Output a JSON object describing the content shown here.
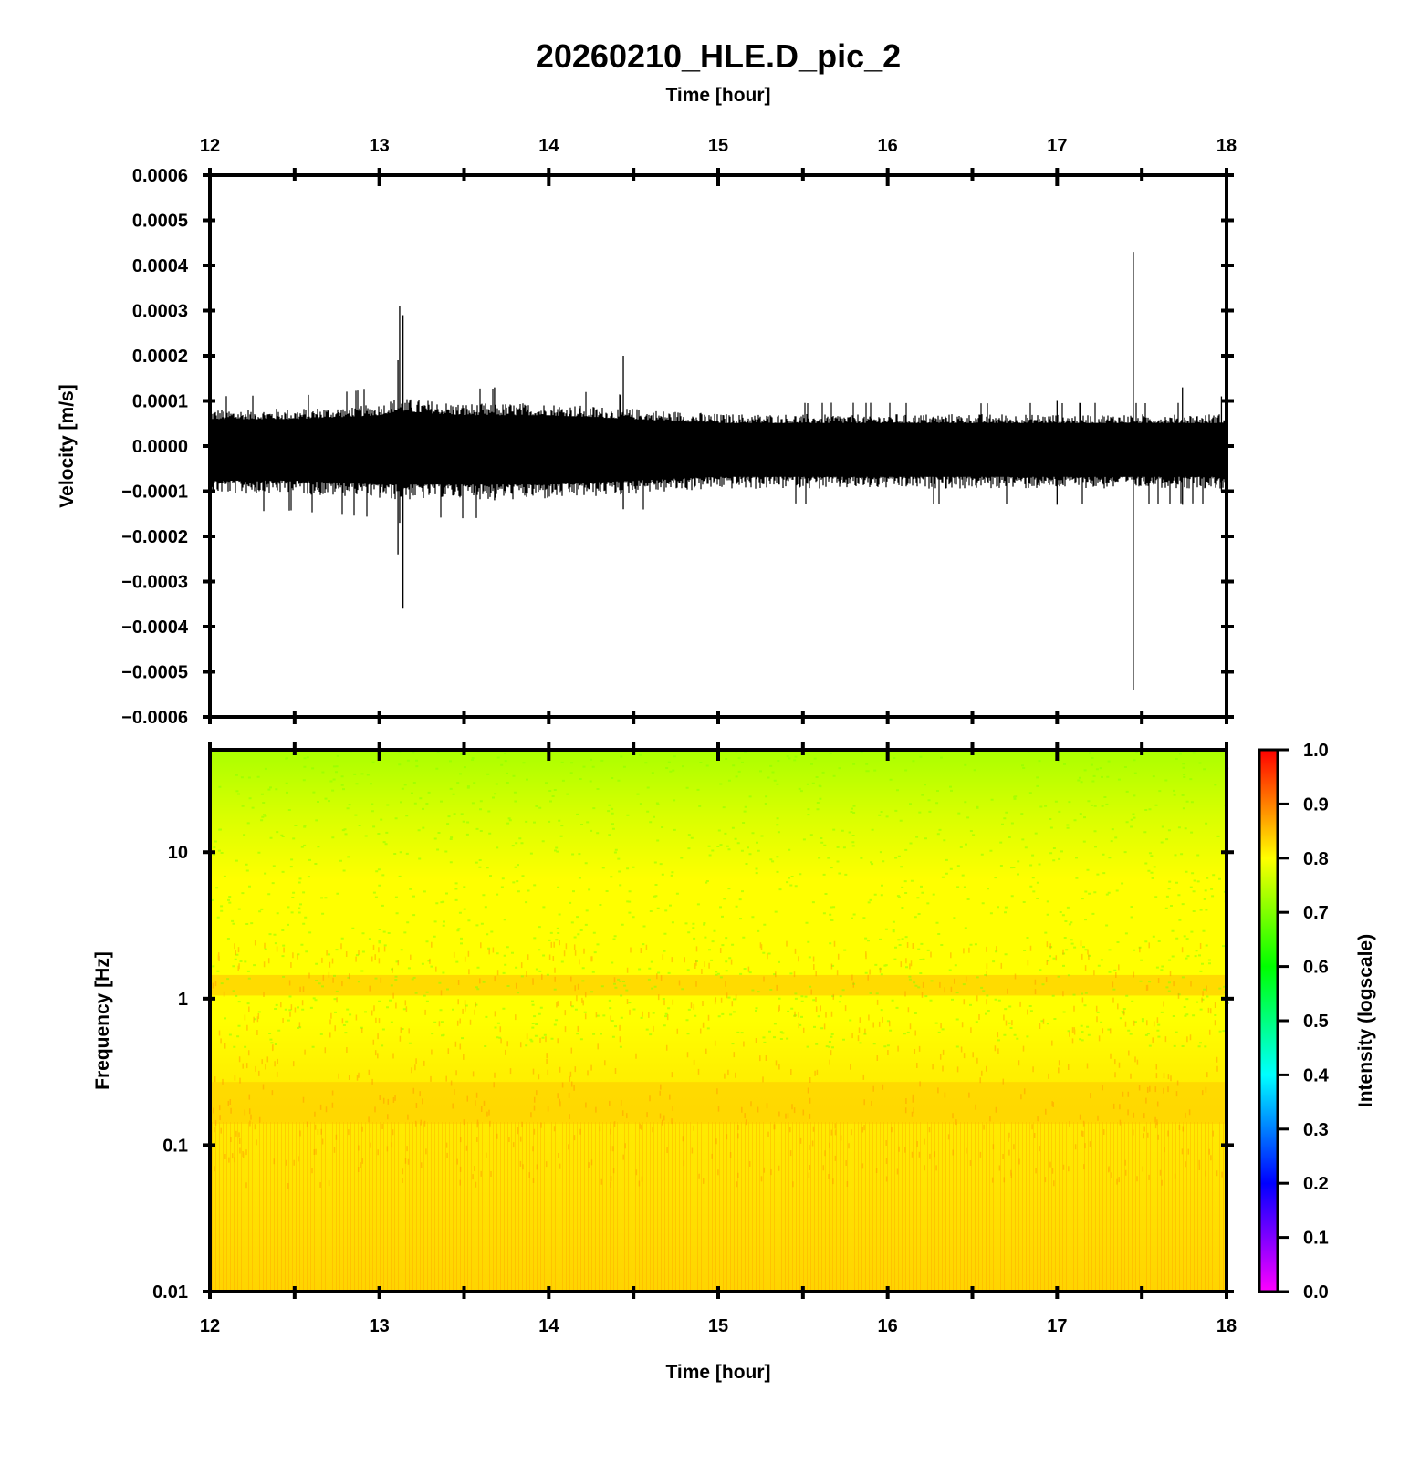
{
  "title": "20260210_HLE.D_pic_2",
  "chart_data": [
    {
      "type": "line",
      "name": "waveform",
      "xlabel": "Time [hour]",
      "ylabel": "Velocity [m/s]",
      "xlim": [
        12,
        18
      ],
      "ylim": [
        -0.0006,
        0.0006
      ],
      "x_ticks": [
        "12",
        "13",
        "14",
        "15",
        "16",
        "17",
        "18"
      ],
      "y_ticks": [
        "0.0006",
        "0.0005",
        "0.0004",
        "0.0003",
        "0.0002",
        "0.0001",
        "0.0000",
        "−0.0001",
        "−0.0002",
        "−0.0003",
        "−0.0004",
        "−0.0005",
        "−0.0006"
      ],
      "y_tick_values": [
        0.0006,
        0.0005,
        0.0004,
        0.0003,
        0.0002,
        0.0001,
        0,
        -0.0001,
        -0.0002,
        -0.0003,
        -0.0004,
        -0.0005,
        -0.0006
      ],
      "envelope": {
        "x": [
          12,
          12.5,
          13,
          13.1,
          13.5,
          14,
          14.5,
          15,
          15.5,
          16,
          16.5,
          17,
          17.5,
          18
        ],
        "upper": [
          7e-05,
          7e-05,
          8e-05,
          9e-05,
          8e-05,
          8e-05,
          7e-05,
          6e-05,
          6e-05,
          6e-05,
          6e-05,
          6e-05,
          6e-05,
          6e-05
        ],
        "lower": [
          -9e-05,
          -9e-05,
          -0.0001,
          -0.0001,
          -0.0001,
          -0.0001,
          -9e-05,
          -8e-05,
          -8e-05,
          -8e-05,
          -8e-05,
          -8e-05,
          -8e-05,
          -8e-05
        ]
      },
      "spikes": [
        {
          "x": 13.11,
          "max": 0.00019,
          "min": -0.00024
        },
        {
          "x": 13.12,
          "max": 0.00031,
          "min": -0.00017
        },
        {
          "x": 13.14,
          "max": 0.00029,
          "min": -0.00036
        },
        {
          "x": 13.68,
          "max": 0.00013,
          "min": -0.00012
        },
        {
          "x": 14.44,
          "max": 0.0002,
          "min": -0.00014
        },
        {
          "x": 17.0,
          "max": 0.0001,
          "min": -0.00013
        },
        {
          "x": 17.45,
          "max": 0.00043,
          "min": -0.00054
        },
        {
          "x": 17.74,
          "max": 0.00013,
          "min": -0.00013
        },
        {
          "x": 17.97,
          "max": 0.00011,
          "min": -0.0001
        }
      ]
    },
    {
      "type": "heatmap",
      "name": "spectrogram",
      "xlabel": "Time [hour]",
      "ylabel": "Frequency [Hz]",
      "xlim": [
        12,
        18
      ],
      "ylim": [
        0.01,
        50
      ],
      "y_scale": "log",
      "x_ticks": [
        "12",
        "13",
        "14",
        "15",
        "16",
        "17",
        "18"
      ],
      "y_ticks": [
        "10",
        "1",
        "0.1",
        "0.01"
      ],
      "y_tick_values": [
        10,
        1,
        0.1,
        0.01
      ],
      "colorbar": {
        "label": "Intensity (logscale)",
        "range": [
          0,
          1
        ],
        "ticks": [
          "1.0",
          "0.9",
          "0.8",
          "0.7",
          "0.6",
          "0.5",
          "0.4",
          "0.3",
          "0.2",
          "0.1",
          "0.0"
        ],
        "tick_values": [
          1,
          0.9,
          0.8,
          0.7,
          0.6,
          0.5,
          0.4,
          0.3,
          0.2,
          0.1,
          0
        ],
        "colors": [
          "#ff00ff",
          "#0000ff",
          "#00ffff",
          "#00ff00",
          "#ffff00",
          "#ff0000"
        ]
      },
      "intensity_profile": {
        "frequency": [
          50,
          10,
          3,
          1.5,
          1.2,
          1,
          0.5,
          0.25,
          0.1,
          0.01
        ],
        "intensity": [
          0.72,
          0.76,
          0.79,
          0.81,
          0.84,
          0.82,
          0.8,
          0.84,
          0.83,
          0.85
        ]
      }
    }
  ]
}
